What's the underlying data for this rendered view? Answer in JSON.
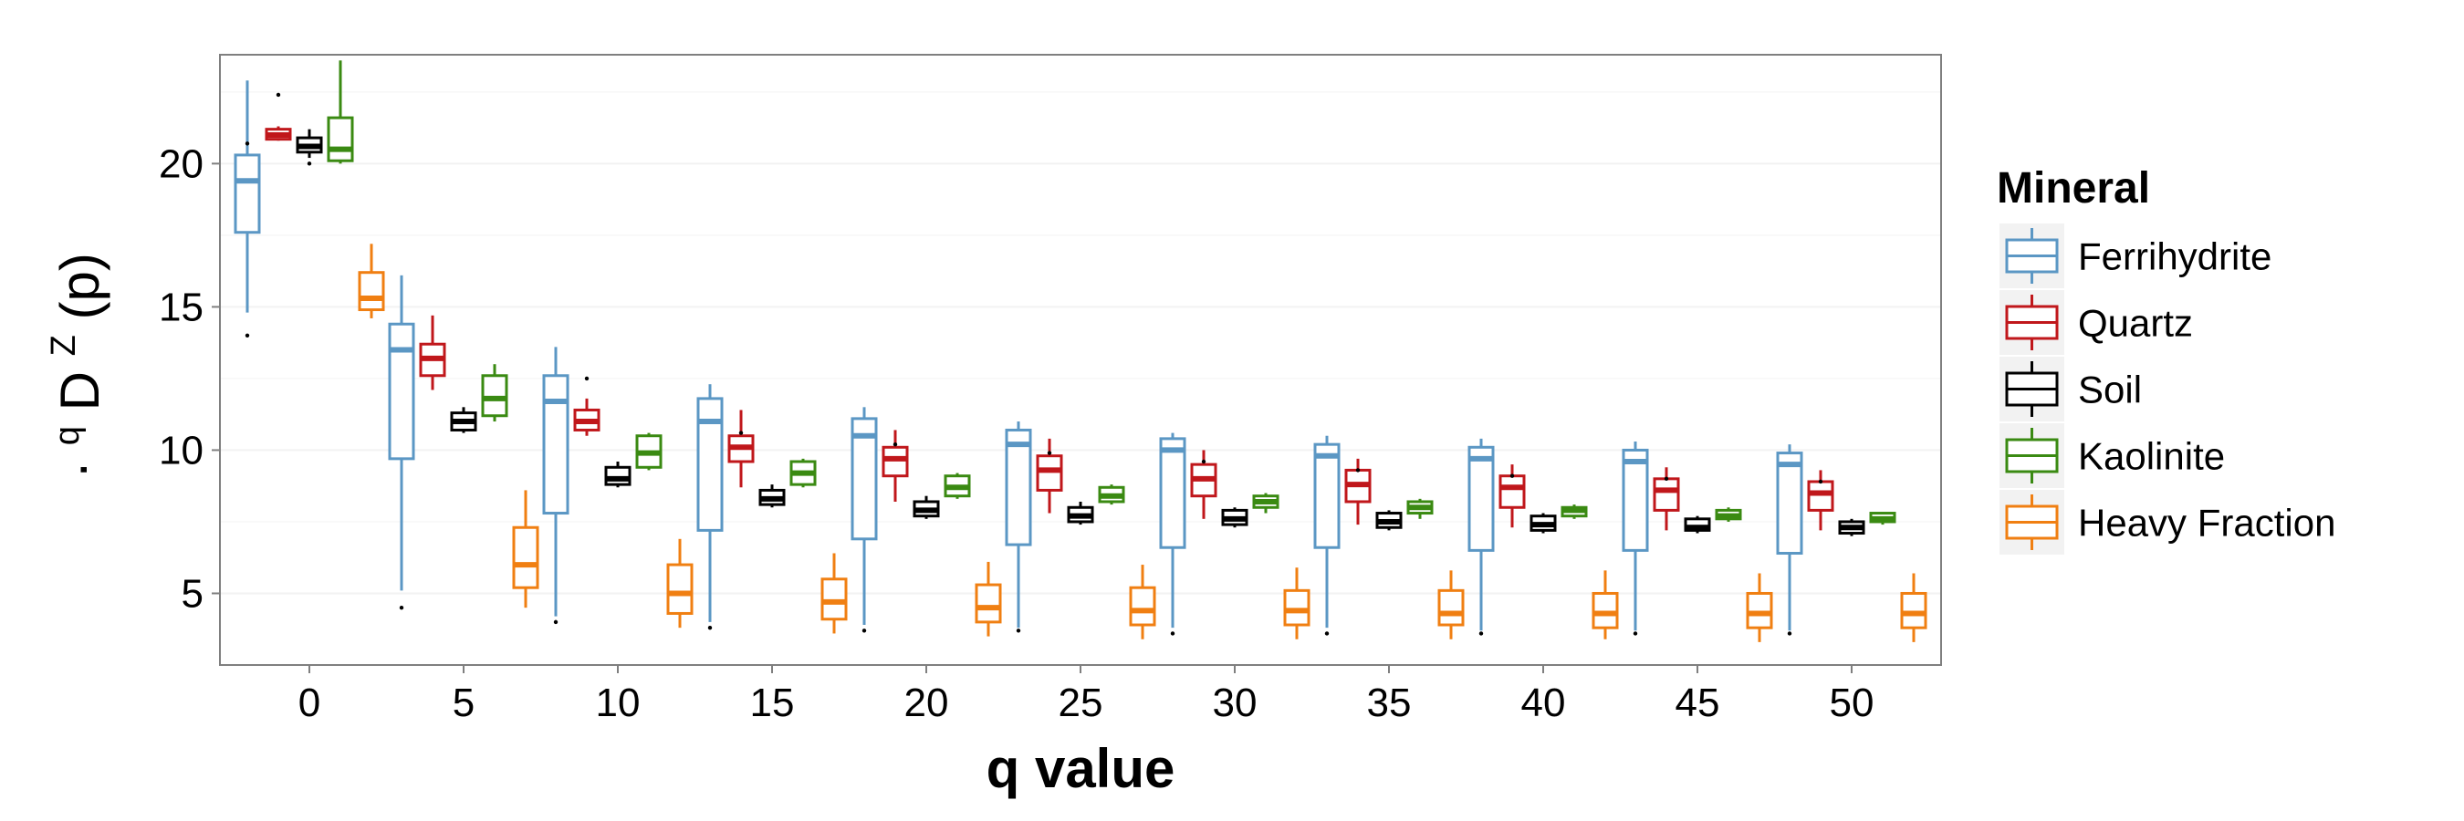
{
  "chart_data": {
    "type": "boxplot",
    "xlabel": "q value",
    "ylabel": "·qDZ(p)",
    "ylabel_parts": {
      "dot": "·",
      "q": "q",
      "D": "D",
      "Z": "Z",
      "p": "(p)"
    },
    "categories": [
      "0",
      "5",
      "10",
      "15",
      "20",
      "25",
      "30",
      "35",
      "40",
      "45",
      "50"
    ],
    "yticks": [
      5,
      10,
      15,
      20
    ],
    "ylim": [
      2.5,
      23.8
    ],
    "grid": true,
    "legend": {
      "title": "Mineral",
      "position": "right"
    },
    "series": [
      {
        "name": "Ferrihydrite",
        "color": "#5b97c4",
        "boxes": [
          {
            "min": 14.8,
            "q1": 17.6,
            "median": 19.4,
            "q3": 20.3,
            "max": 22.9,
            "outliers": [
              14.0,
              20.7
            ]
          },
          {
            "min": 5.1,
            "q1": 9.7,
            "median": 13.5,
            "q3": 14.4,
            "max": 16.1,
            "outliers": [
              4.5
            ]
          },
          {
            "min": 4.2,
            "q1": 7.8,
            "median": 11.7,
            "q3": 12.6,
            "max": 13.6,
            "outliers": [
              4.0
            ]
          },
          {
            "min": 4.0,
            "q1": 7.2,
            "median": 11.0,
            "q3": 11.8,
            "max": 12.3,
            "outliers": [
              3.8
            ]
          },
          {
            "min": 3.9,
            "q1": 6.9,
            "median": 10.5,
            "q3": 11.1,
            "max": 11.5,
            "outliers": [
              3.7
            ]
          },
          {
            "min": 3.8,
            "q1": 6.7,
            "median": 10.2,
            "q3": 10.7,
            "max": 11.0,
            "outliers": [
              3.7
            ]
          },
          {
            "min": 3.8,
            "q1": 6.6,
            "median": 10.0,
            "q3": 10.4,
            "max": 10.6,
            "outliers": [
              3.6
            ]
          },
          {
            "min": 3.8,
            "q1": 6.6,
            "median": 9.8,
            "q3": 10.2,
            "max": 10.5,
            "outliers": [
              3.6
            ]
          },
          {
            "min": 3.7,
            "q1": 6.5,
            "median": 9.7,
            "q3": 10.1,
            "max": 10.4,
            "outliers": [
              3.6
            ]
          },
          {
            "min": 3.7,
            "q1": 6.5,
            "median": 9.6,
            "q3": 10.0,
            "max": 10.3,
            "outliers": [
              3.6
            ]
          },
          {
            "min": 3.7,
            "q1": 6.4,
            "median": 9.5,
            "q3": 9.9,
            "max": 10.2,
            "outliers": [
              3.6
            ]
          }
        ]
      },
      {
        "name": "Quartz",
        "color": "#c0171b",
        "boxes": [
          {
            "min": 20.8,
            "q1": 20.85,
            "median": 21.0,
            "q3": 21.2,
            "max": 21.3,
            "outliers": [
              22.4
            ]
          },
          {
            "min": 12.1,
            "q1": 12.6,
            "median": 13.2,
            "q3": 13.7,
            "max": 14.7,
            "outliers": []
          },
          {
            "min": 10.5,
            "q1": 10.7,
            "median": 11.0,
            "q3": 11.4,
            "max": 11.8,
            "outliers": [
              12.5
            ]
          },
          {
            "min": 8.7,
            "q1": 9.6,
            "median": 10.1,
            "q3": 10.5,
            "max": 11.4,
            "outliers": [
              10.6
            ]
          },
          {
            "min": 8.2,
            "q1": 9.1,
            "median": 9.7,
            "q3": 10.1,
            "max": 10.7,
            "outliers": [
              10.2
            ]
          },
          {
            "min": 7.8,
            "q1": 8.6,
            "median": 9.3,
            "q3": 9.8,
            "max": 10.4,
            "outliers": [
              9.9
            ]
          },
          {
            "min": 7.6,
            "q1": 8.4,
            "median": 9.0,
            "q3": 9.5,
            "max": 10.0,
            "outliers": [
              9.6
            ]
          },
          {
            "min": 7.4,
            "q1": 8.2,
            "median": 8.8,
            "q3": 9.3,
            "max": 9.7,
            "outliers": [
              9.3
            ]
          },
          {
            "min": 7.3,
            "q1": 8.0,
            "median": 8.7,
            "q3": 9.1,
            "max": 9.5,
            "outliers": [
              9.1
            ]
          },
          {
            "min": 7.2,
            "q1": 7.9,
            "median": 8.6,
            "q3": 9.0,
            "max": 9.4,
            "outliers": [
              9.0
            ]
          },
          {
            "min": 7.2,
            "q1": 7.9,
            "median": 8.5,
            "q3": 8.9,
            "max": 9.3,
            "outliers": [
              8.9
            ]
          }
        ]
      },
      {
        "name": "Soil",
        "color": "#000000",
        "boxes": [
          {
            "min": 20.2,
            "q1": 20.4,
            "median": 20.6,
            "q3": 20.9,
            "max": 21.2,
            "outliers": [
              20.0
            ]
          },
          {
            "min": 10.6,
            "q1": 10.7,
            "median": 11.0,
            "q3": 11.3,
            "max": 11.5,
            "outliers": []
          },
          {
            "min": 8.7,
            "q1": 8.8,
            "median": 9.0,
            "q3": 9.4,
            "max": 9.6,
            "outliers": []
          },
          {
            "min": 8.0,
            "q1": 8.1,
            "median": 8.3,
            "q3": 8.6,
            "max": 8.8,
            "outliers": []
          },
          {
            "min": 7.6,
            "q1": 7.7,
            "median": 7.9,
            "q3": 8.2,
            "max": 8.4,
            "outliers": []
          },
          {
            "min": 7.4,
            "q1": 7.5,
            "median": 7.7,
            "q3": 8.0,
            "max": 8.2,
            "outliers": []
          },
          {
            "min": 7.3,
            "q1": 7.4,
            "median": 7.6,
            "q3": 7.9,
            "max": 8.0,
            "outliers": []
          },
          {
            "min": 7.2,
            "q1": 7.3,
            "median": 7.5,
            "q3": 7.8,
            "max": 7.9,
            "outliers": []
          },
          {
            "min": 7.1,
            "q1": 7.2,
            "median": 7.4,
            "q3": 7.7,
            "max": 7.8,
            "outliers": []
          },
          {
            "min": 7.1,
            "q1": 7.2,
            "median": 7.3,
            "q3": 7.6,
            "max": 7.7,
            "outliers": []
          },
          {
            "min": 7.0,
            "q1": 7.1,
            "median": 7.3,
            "q3": 7.5,
            "max": 7.6,
            "outliers": []
          }
        ]
      },
      {
        "name": "Kaolinite",
        "color": "#3a8a12",
        "boxes": [
          {
            "min": 20.0,
            "q1": 20.1,
            "median": 20.5,
            "q3": 21.6,
            "max": 23.6,
            "outliers": []
          },
          {
            "min": 11.0,
            "q1": 11.2,
            "median": 11.8,
            "q3": 12.6,
            "max": 13.0,
            "outliers": []
          },
          {
            "min": 9.3,
            "q1": 9.4,
            "median": 9.9,
            "q3": 10.5,
            "max": 10.6,
            "outliers": []
          },
          {
            "min": 8.7,
            "q1": 8.8,
            "median": 9.2,
            "q3": 9.6,
            "max": 9.7,
            "outliers": []
          },
          {
            "min": 8.3,
            "q1": 8.4,
            "median": 8.7,
            "q3": 9.1,
            "max": 9.2,
            "outliers": []
          },
          {
            "min": 8.1,
            "q1": 8.2,
            "median": 8.4,
            "q3": 8.7,
            "max": 8.8,
            "outliers": []
          },
          {
            "min": 7.8,
            "q1": 8.0,
            "median": 8.2,
            "q3": 8.4,
            "max": 8.5,
            "outliers": []
          },
          {
            "min": 7.6,
            "q1": 7.8,
            "median": 8.0,
            "q3": 8.2,
            "max": 8.3,
            "outliers": []
          },
          {
            "min": 7.6,
            "q1": 7.7,
            "median": 7.9,
            "q3": 8.0,
            "max": 8.1,
            "outliers": []
          },
          {
            "min": 7.5,
            "q1": 7.6,
            "median": 7.7,
            "q3": 7.9,
            "max": 8.0,
            "outliers": []
          },
          {
            "min": 7.4,
            "q1": 7.5,
            "median": 7.6,
            "q3": 7.8,
            "max": 7.8,
            "outliers": []
          }
        ]
      },
      {
        "name": "Heavy Fraction",
        "color": "#f07f12",
        "boxes": [
          {
            "min": 14.6,
            "q1": 14.9,
            "median": 15.3,
            "q3": 16.2,
            "max": 17.2,
            "outliers": []
          },
          {
            "min": 4.5,
            "q1": 5.2,
            "median": 6.0,
            "q3": 7.3,
            "max": 8.6,
            "outliers": []
          },
          {
            "min": 3.8,
            "q1": 4.3,
            "median": 5.0,
            "q3": 6.0,
            "max": 6.9,
            "outliers": []
          },
          {
            "min": 3.6,
            "q1": 4.1,
            "median": 4.7,
            "q3": 5.5,
            "max": 6.4,
            "outliers": []
          },
          {
            "min": 3.5,
            "q1": 4.0,
            "median": 4.5,
            "q3": 5.3,
            "max": 6.1,
            "outliers": []
          },
          {
            "min": 3.4,
            "q1": 3.9,
            "median": 4.4,
            "q3": 5.2,
            "max": 6.0,
            "outliers": []
          },
          {
            "min": 3.4,
            "q1": 3.9,
            "median": 4.4,
            "q3": 5.1,
            "max": 5.9,
            "outliers": []
          },
          {
            "min": 3.4,
            "q1": 3.9,
            "median": 4.3,
            "q3": 5.1,
            "max": 5.8,
            "outliers": []
          },
          {
            "min": 3.4,
            "q1": 3.8,
            "median": 4.3,
            "q3": 5.0,
            "max": 5.8,
            "outliers": []
          },
          {
            "min": 3.3,
            "q1": 3.8,
            "median": 4.3,
            "q3": 5.0,
            "max": 5.7,
            "outliers": []
          },
          {
            "min": 3.3,
            "q1": 3.8,
            "median": 4.3,
            "q3": 5.0,
            "max": 5.7,
            "outliers": []
          }
        ]
      }
    ]
  }
}
